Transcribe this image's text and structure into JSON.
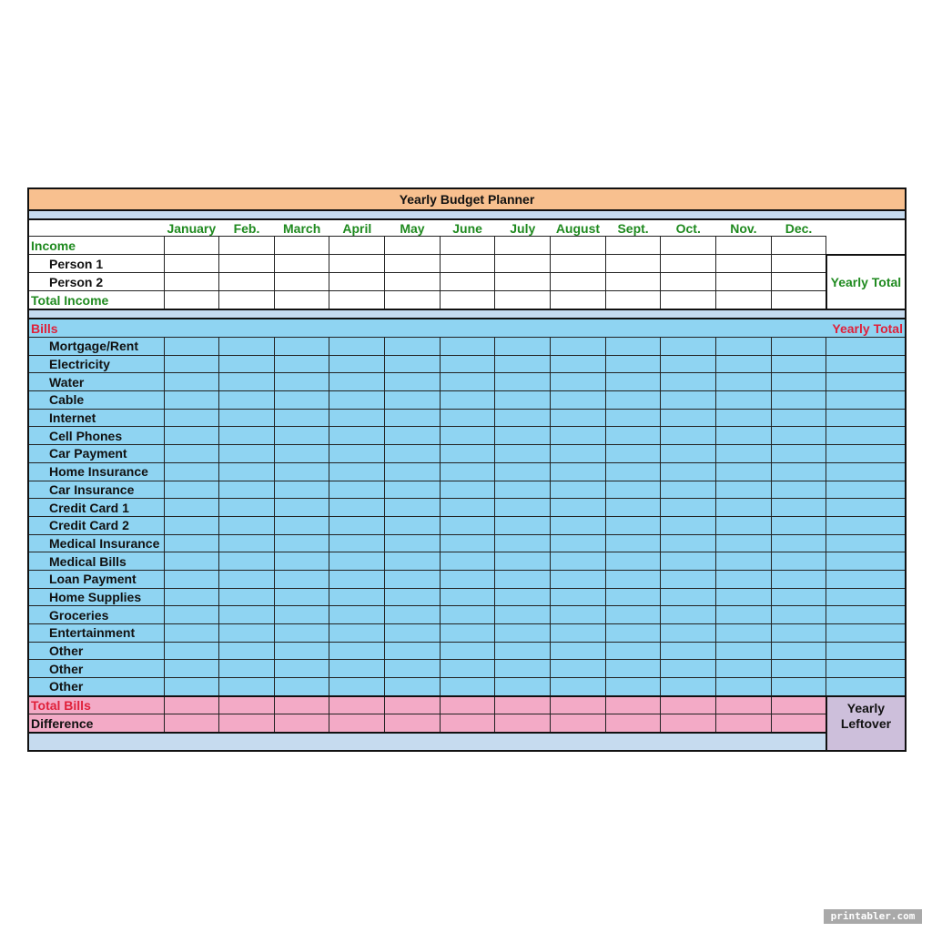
{
  "title": "Yearly Budget Planner",
  "months": [
    "January",
    "Feb.",
    "March",
    "April",
    "May",
    "June",
    "July",
    "August",
    "Sept.",
    "Oct.",
    "Nov.",
    "Dec."
  ],
  "income": {
    "header": "Income",
    "rows": [
      "Person 1",
      "Person 2"
    ],
    "total": "Total Income",
    "yearly_total": "Yearly Total"
  },
  "bills": {
    "header": "Bills",
    "yearly_total": "Yearly Total",
    "rows": [
      "Mortgage/Rent",
      "Electricity",
      "Water",
      "Cable",
      "Internet",
      "Cell Phones",
      "Car Payment",
      "Home Insurance",
      "Car Insurance",
      "Credit Card 1",
      "Credit Card 2",
      "Medical Insurance",
      "Medical Bills",
      "Loan Payment",
      "Home Supplies",
      "Groceries",
      "Entertainment",
      "Other",
      "Other",
      "Other"
    ]
  },
  "summary": {
    "total_bills": "Total Bills",
    "difference": "Difference",
    "yearly_leftover_line1": "Yearly",
    "yearly_leftover_line2": "Leftover"
  },
  "watermark": "printabler.com",
  "colors": {
    "title_bg": "#f8c08f",
    "bills_bg": "#8fd4f2",
    "strip_bg": "#c6dbef",
    "totals_bg": "#f3aac6",
    "leftover_bg": "#cdbfdb",
    "green_text": "#1f8a1f",
    "red_text": "#e0203a"
  }
}
